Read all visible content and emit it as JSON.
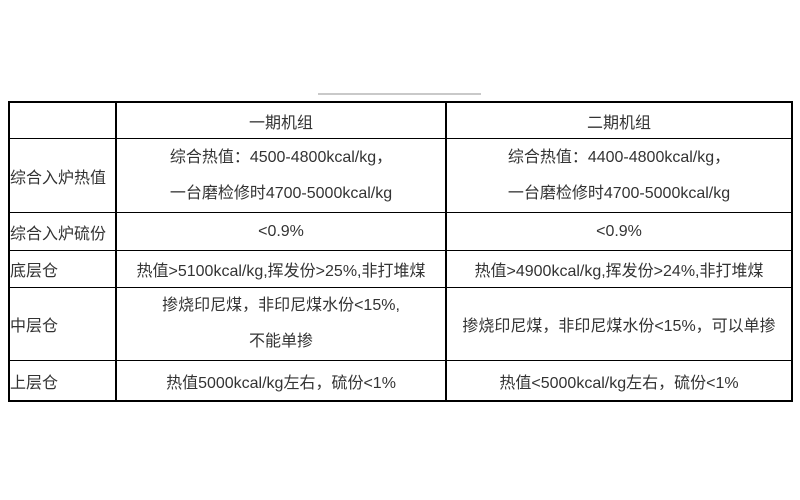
{
  "page": {
    "background_color": "#ffffff",
    "text_color": "#333333",
    "border_color": "#000000",
    "decor_line_color": "#c9c9c9"
  },
  "table": {
    "header": {
      "corner": "",
      "unit1": "一期机组",
      "unit2": "二期机组"
    },
    "rows": [
      {
        "label": "综合入炉热值",
        "unit1_lines": [
          "综合热值：4500-4800kcal/kg，",
          "一台磨检修时4700-5000kcal/kg"
        ],
        "unit2_lines": [
          "综合热值：4400-4800kcal/kg，",
          "一台磨检修时4700-5000kcal/kg"
        ]
      },
      {
        "label": "综合入炉硫份",
        "unit1_lines": [
          "<0.9%"
        ],
        "unit2_lines": [
          "<0.9%"
        ]
      },
      {
        "label": "底层仓",
        "unit1_lines": [
          "热值>5100kcal/kg,挥发份>25%,非打堆煤"
        ],
        "unit2_lines": [
          "热值>4900kcal/kg,挥发份>24%,非打堆煤"
        ]
      },
      {
        "label": "中层仓",
        "unit1_lines": [
          "掺烧印尼煤，非印尼煤水份<15%,",
          "不能单掺"
        ],
        "unit2_lines": [
          "掺烧印尼煤，非印尼煤水份<15%，可以单掺"
        ]
      },
      {
        "label": "上层仓",
        "unit1_lines": [
          "热值5000kcal/kg左右，硫份<1%"
        ],
        "unit2_lines": [
          "热值<5000kcal/kg左右，硫份<1%"
        ]
      }
    ]
  }
}
